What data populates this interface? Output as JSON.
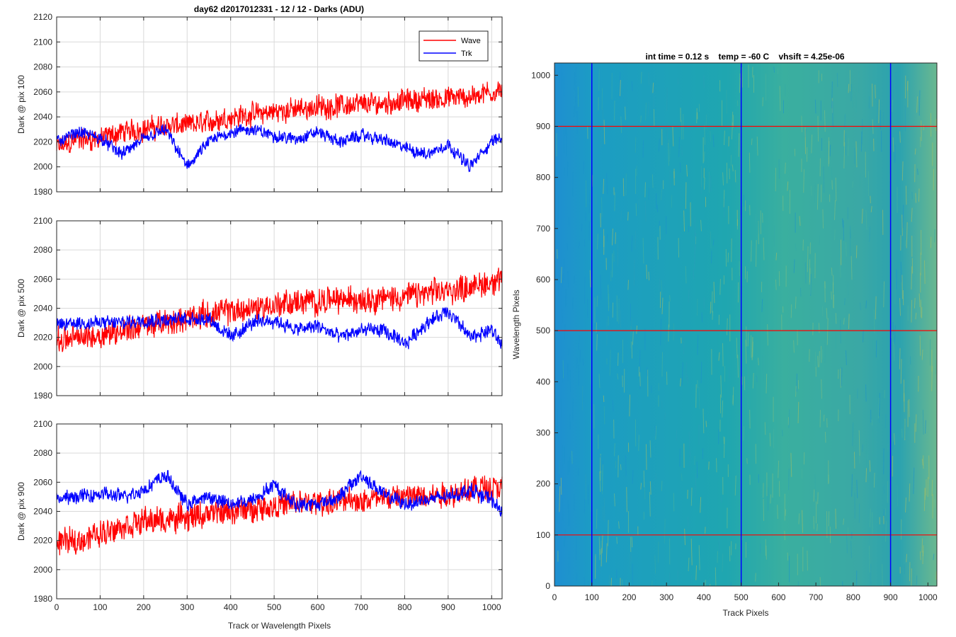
{
  "colors": {
    "wave": "#ff0000",
    "trk": "#0000ff",
    "grid": "#d9d9d9",
    "axis": "#262626",
    "heatmap_low": "#1f8fd1",
    "heatmap_mid": "#1fa8a0",
    "heatmap_high": "#c8c040"
  },
  "chart_data": [
    {
      "type": "line",
      "title": "day62 d2017012331 - 12 / 12 - Darks (ADU)",
      "xlabel": "",
      "ylabel": "Dark @ pix 100",
      "xlim": [
        0,
        1024
      ],
      "ylim": [
        1980,
        2120
      ],
      "xticks": [
        0,
        100,
        200,
        300,
        400,
        500,
        600,
        700,
        800,
        900,
        1000
      ],
      "xtick_labels": [],
      "yticks": [
        1980,
        2000,
        2020,
        2040,
        2060,
        2080,
        2100,
        2120
      ],
      "ytick_labels": [
        "1980",
        "2000",
        "2020",
        "2040",
        "2060",
        "2080",
        "2100",
        "2120"
      ],
      "grid": true,
      "legend": "top-right",
      "legend_entries": [
        "Wave",
        "Trk"
      ],
      "series": [
        {
          "name": "Wave",
          "x": [
            0,
            50,
            100,
            150,
            200,
            250,
            300,
            350,
            400,
            450,
            500,
            550,
            600,
            650,
            700,
            750,
            800,
            850,
            900,
            950,
            1000,
            1024
          ],
          "values": [
            2015,
            2022,
            2022,
            2028,
            2030,
            2033,
            2033,
            2036,
            2040,
            2042,
            2044,
            2046,
            2048,
            2049,
            2050,
            2051,
            2053,
            2054,
            2055,
            2056,
            2060,
            2062
          ]
        },
        {
          "name": "Trk",
          "x": [
            0,
            50,
            100,
            150,
            200,
            250,
            300,
            350,
            400,
            450,
            500,
            550,
            600,
            650,
            700,
            750,
            800,
            850,
            900,
            950,
            1000,
            1024
          ],
          "values": [
            2020,
            2028,
            2023,
            2010,
            2022,
            2030,
            2000,
            2020,
            2028,
            2030,
            2025,
            2022,
            2028,
            2020,
            2025,
            2022,
            2015,
            2010,
            2018,
            2000,
            2020,
            2025
          ]
        }
      ]
    },
    {
      "type": "line",
      "title": "",
      "xlabel": "",
      "ylabel": "Dark @ pix 500",
      "xlim": [
        0,
        1024
      ],
      "ylim": [
        1980,
        2100
      ],
      "xticks": [
        0,
        100,
        200,
        300,
        400,
        500,
        600,
        700,
        800,
        900,
        1000
      ],
      "xtick_labels": [],
      "yticks": [
        1980,
        2000,
        2020,
        2040,
        2060,
        2080,
        2100
      ],
      "ytick_labels": [
        "1980",
        "2000",
        "2020",
        "2040",
        "2060",
        "2080",
        "2100"
      ],
      "grid": true,
      "series": [
        {
          "name": "Wave",
          "x": [
            0,
            50,
            100,
            150,
            200,
            250,
            300,
            350,
            400,
            450,
            500,
            550,
            600,
            650,
            700,
            750,
            800,
            850,
            900,
            950,
            1000,
            1024
          ],
          "values": [
            2018,
            2020,
            2022,
            2025,
            2028,
            2030,
            2033,
            2036,
            2038,
            2040,
            2042,
            2044,
            2045,
            2046,
            2046,
            2047,
            2048,
            2050,
            2052,
            2055,
            2058,
            2060
          ]
        },
        {
          "name": "Trk",
          "x": [
            0,
            50,
            100,
            150,
            200,
            250,
            300,
            350,
            400,
            450,
            500,
            550,
            600,
            650,
            700,
            750,
            800,
            850,
            900,
            950,
            1000,
            1024
          ],
          "values": [
            2028,
            2030,
            2030,
            2030,
            2032,
            2032,
            2033,
            2033,
            2020,
            2030,
            2032,
            2025,
            2028,
            2020,
            2025,
            2025,
            2015,
            2030,
            2038,
            2020,
            2025,
            2015
          ]
        }
      ]
    },
    {
      "type": "line",
      "title": "",
      "xlabel": "Track or Wavelength Pixels",
      "ylabel": "Dark @ pix 900",
      "xlim": [
        0,
        1024
      ],
      "ylim": [
        1980,
        2100
      ],
      "xticks": [
        0,
        100,
        200,
        300,
        400,
        500,
        600,
        700,
        800,
        900,
        1000
      ],
      "xtick_labels": [
        "0",
        "100",
        "200",
        "300",
        "400",
        "500",
        "600",
        "700",
        "800",
        "900",
        "1000"
      ],
      "yticks": [
        1980,
        2000,
        2020,
        2040,
        2060,
        2080,
        2100
      ],
      "ytick_labels": [
        "1980",
        "2000",
        "2020",
        "2040",
        "2060",
        "2080",
        "2100"
      ],
      "grid": true,
      "series": [
        {
          "name": "Wave",
          "x": [
            0,
            50,
            100,
            150,
            200,
            250,
            300,
            350,
            400,
            450,
            500,
            550,
            600,
            650,
            700,
            750,
            800,
            850,
            900,
            950,
            1000,
            1024
          ],
          "values": [
            2018,
            2020,
            2025,
            2030,
            2033,
            2034,
            2036,
            2038,
            2040,
            2042,
            2044,
            2045,
            2046,
            2047,
            2048,
            2049,
            2050,
            2051,
            2052,
            2055,
            2057,
            2058
          ]
        },
        {
          "name": "Trk",
          "x": [
            0,
            50,
            100,
            150,
            200,
            250,
            300,
            350,
            400,
            450,
            500,
            550,
            600,
            650,
            700,
            750,
            800,
            850,
            900,
            950,
            1000,
            1024
          ],
          "values": [
            2048,
            2050,
            2052,
            2050,
            2055,
            2065,
            2045,
            2050,
            2045,
            2048,
            2058,
            2045,
            2045,
            2050,
            2065,
            2052,
            2045,
            2048,
            2050,
            2055,
            2048,
            2040
          ]
        }
      ]
    },
    {
      "type": "heatmap",
      "title": "int time = 0.12 s    temp = -60 C    vhsift = 4.25e-06",
      "xlabel": "Track Pixels",
      "ylabel": "Wavelength Pixels",
      "xlim": [
        0,
        1024
      ],
      "ylim": [
        0,
        1024
      ],
      "xticks": [
        0,
        100,
        200,
        300,
        400,
        500,
        600,
        700,
        800,
        900,
        1000
      ],
      "xtick_labels": [
        "0",
        "100",
        "200",
        "300",
        "400",
        "500",
        "600",
        "700",
        "800",
        "900",
        "1000"
      ],
      "yticks": [
        0,
        100,
        200,
        300,
        400,
        500,
        600,
        700,
        800,
        900,
        1000
      ],
      "ytick_labels": [
        "0",
        "100",
        "200",
        "300",
        "400",
        "500",
        "600",
        "700",
        "800",
        "900",
        "1000"
      ],
      "hlines": [
        100,
        500,
        900
      ],
      "vlines": [
        100,
        500,
        900
      ]
    }
  ]
}
